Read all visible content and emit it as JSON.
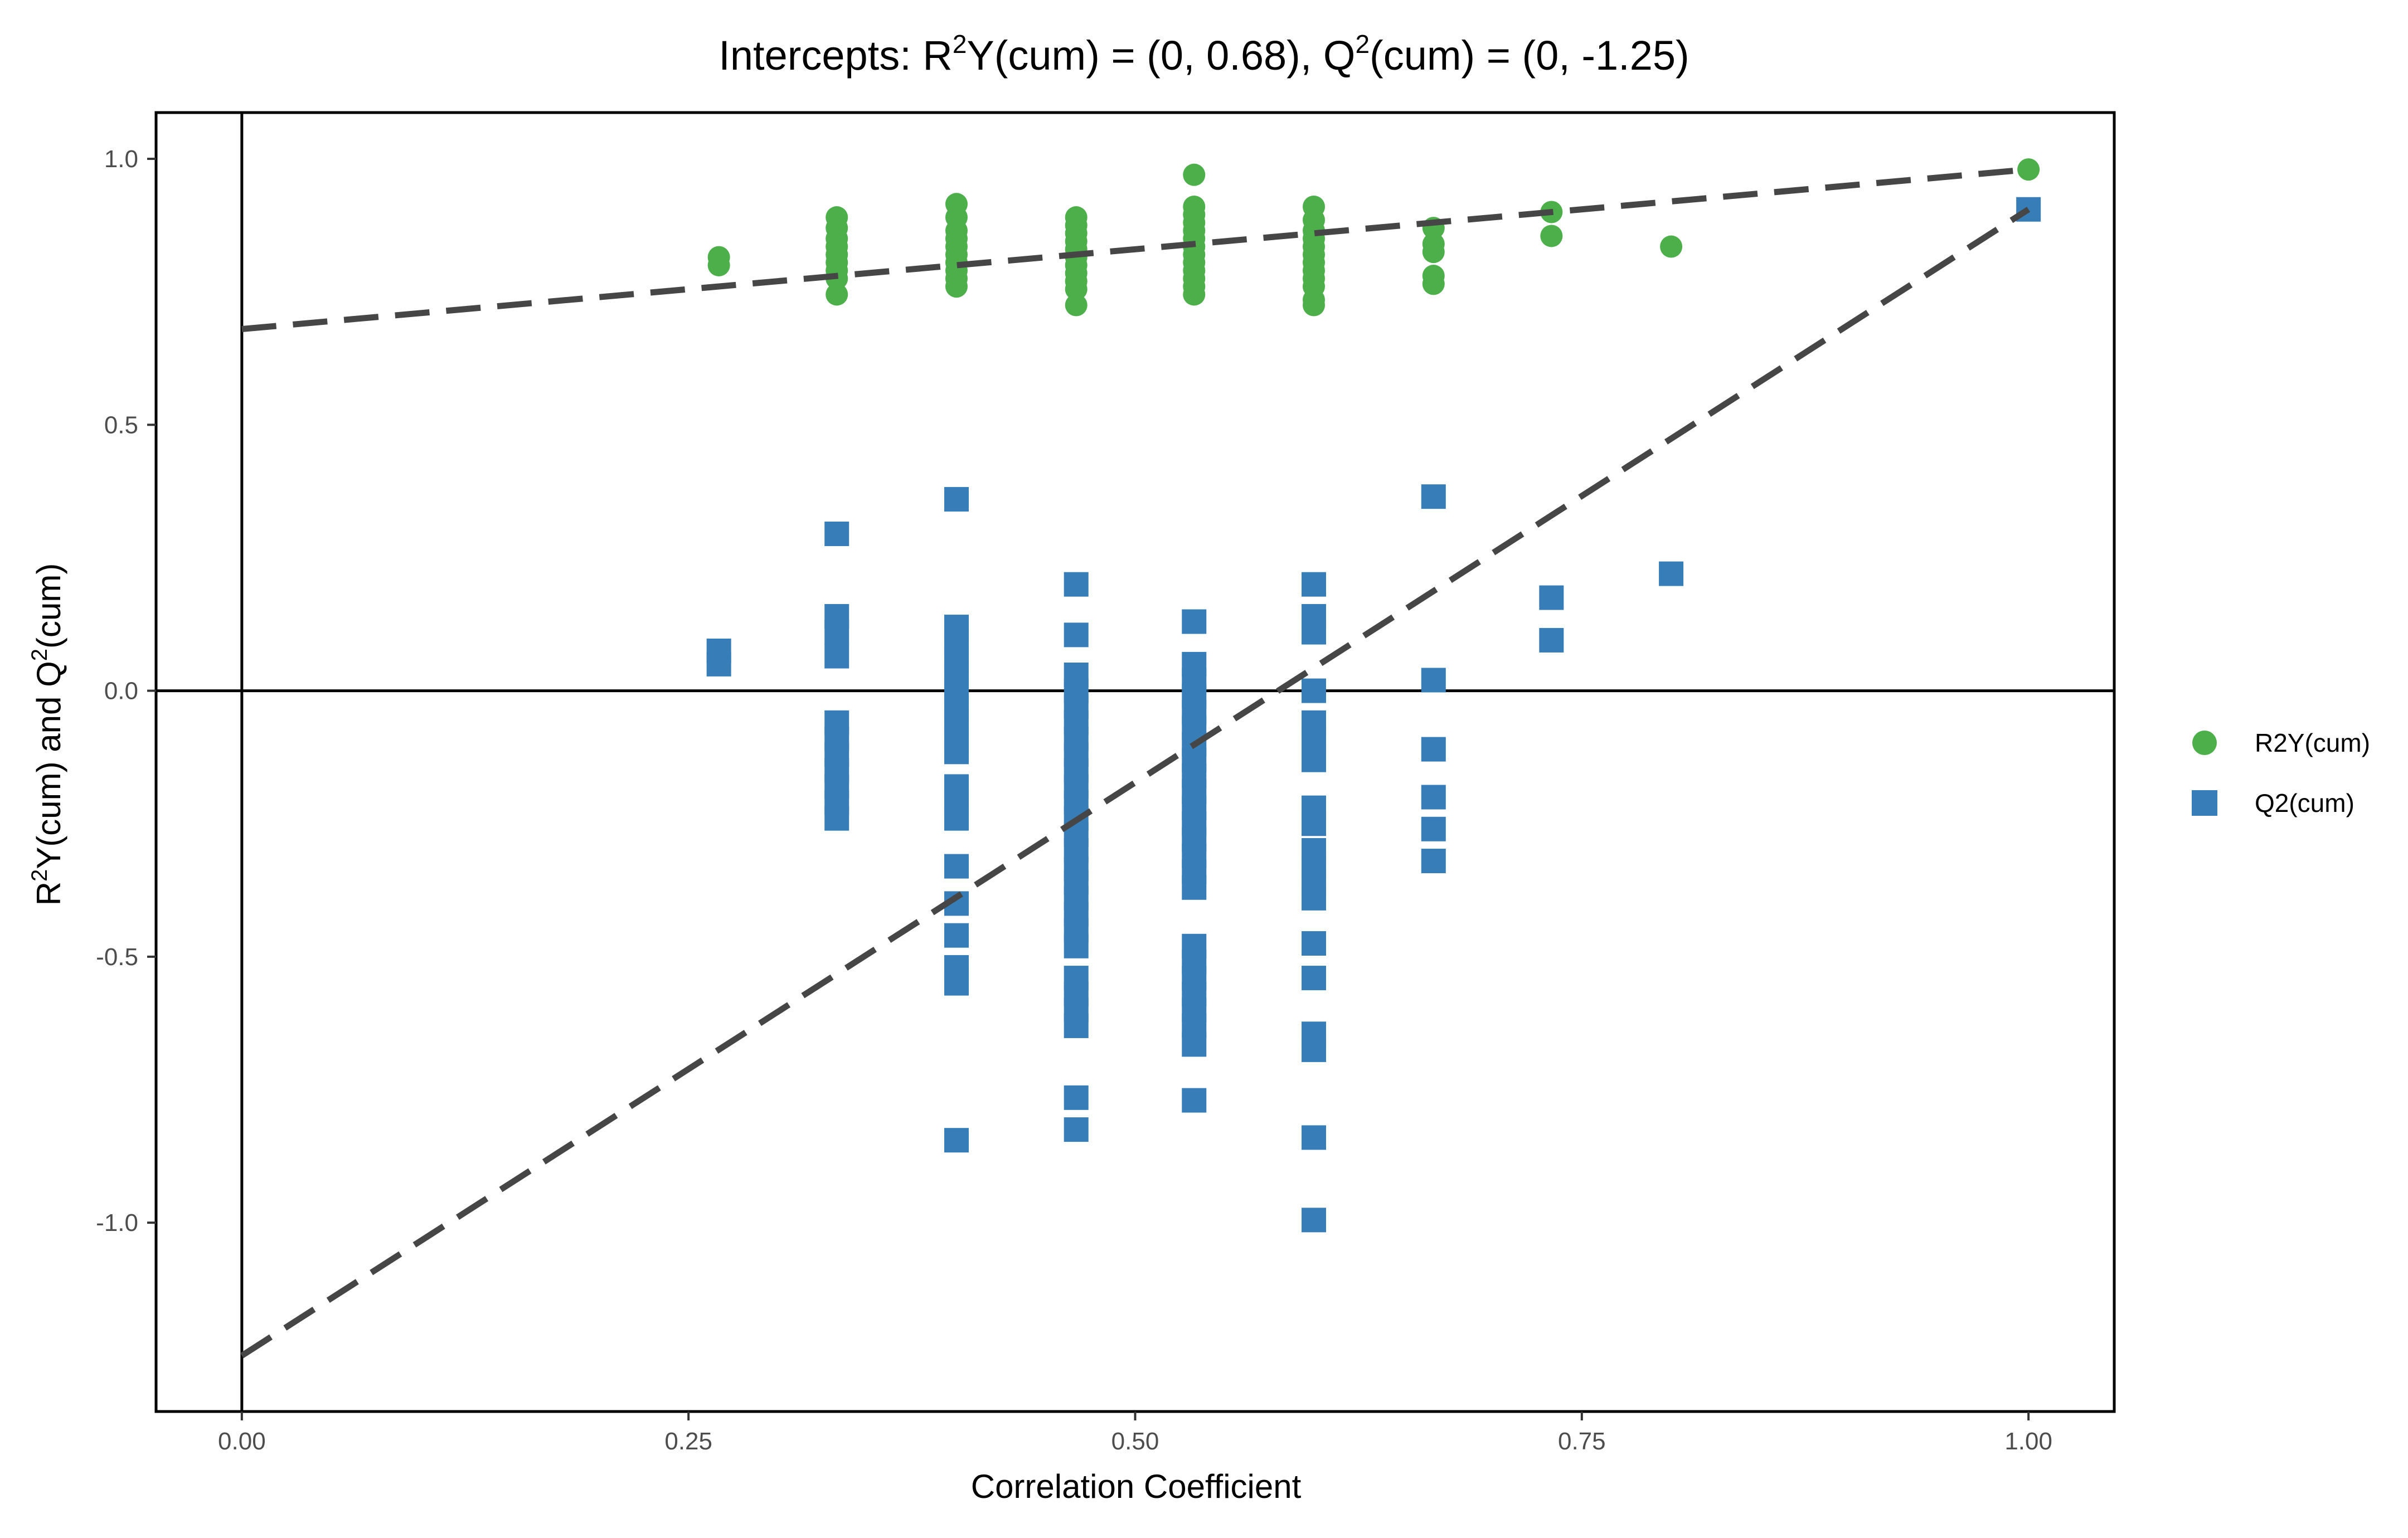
{
  "chart_data": {
    "type": "scatter",
    "title": {
      "prefix": "Intercepts: R",
      "sup1": "2",
      "mid": "Y(cum) = (0, 0.68), Q",
      "sup2": "2",
      "suffix": "(cum) = (0, -1.25)"
    },
    "xlabel": "Correlation Coefficient",
    "ylabel": {
      "a": "R",
      "sup1": "2",
      "b": "Y(cum) and Q",
      "sup2": "2",
      "c": "(cum)"
    },
    "xlim": [
      -0.048,
      1.048
    ],
    "ylim": [
      -1.355,
      1.087
    ],
    "x_ticks": [
      0,
      0.25,
      0.5,
      0.75,
      1
    ],
    "x_tick_labels": [
      "0.00",
      "0.25",
      "0.50",
      "0.75",
      "1.00"
    ],
    "y_ticks": [
      1,
      0.5,
      0,
      -0.5,
      -1
    ],
    "y_tick_labels": [
      "1.0",
      "0.5",
      "0.0",
      "-0.5",
      "-1.0"
    ],
    "reference_lines": [
      {
        "axis": "x",
        "value": 0
      },
      {
        "axis": "y",
        "value": 0
      }
    ],
    "grid": false,
    "legend_position": "right",
    "series": [
      {
        "name": "R2Y(cum)",
        "marker": "circle",
        "color": "#4daf4a",
        "regression": {
          "intercept": 0.68,
          "slope": 0.3
        },
        "points": [
          [
            0.267,
            0.815
          ],
          [
            0.267,
            0.8
          ],
          [
            0.333,
            0.89
          ],
          [
            0.333,
            0.87
          ],
          [
            0.333,
            0.85
          ],
          [
            0.333,
            0.835
          ],
          [
            0.333,
            0.82
          ],
          [
            0.333,
            0.805
          ],
          [
            0.333,
            0.79
          ],
          [
            0.333,
            0.775
          ],
          [
            0.333,
            0.745
          ],
          [
            0.4,
            0.915
          ],
          [
            0.4,
            0.89
          ],
          [
            0.4,
            0.865
          ],
          [
            0.4,
            0.85
          ],
          [
            0.4,
            0.835
          ],
          [
            0.4,
            0.82
          ],
          [
            0.4,
            0.805
          ],
          [
            0.4,
            0.79
          ],
          [
            0.4,
            0.775
          ],
          [
            0.4,
            0.76
          ],
          [
            0.467,
            0.89
          ],
          [
            0.467,
            0.875
          ],
          [
            0.467,
            0.86
          ],
          [
            0.467,
            0.845
          ],
          [
            0.467,
            0.83
          ],
          [
            0.467,
            0.815
          ],
          [
            0.467,
            0.8
          ],
          [
            0.467,
            0.785
          ],
          [
            0.467,
            0.77
          ],
          [
            0.467,
            0.755
          ],
          [
            0.467,
            0.725
          ],
          [
            0.533,
            0.97
          ],
          [
            0.533,
            0.91
          ],
          [
            0.533,
            0.895
          ],
          [
            0.533,
            0.88
          ],
          [
            0.533,
            0.865
          ],
          [
            0.533,
            0.85
          ],
          [
            0.533,
            0.835
          ],
          [
            0.533,
            0.82
          ],
          [
            0.533,
            0.805
          ],
          [
            0.533,
            0.79
          ],
          [
            0.533,
            0.775
          ],
          [
            0.533,
            0.76
          ],
          [
            0.533,
            0.745
          ],
          [
            0.6,
            0.91
          ],
          [
            0.6,
            0.885
          ],
          [
            0.6,
            0.865
          ],
          [
            0.6,
            0.85
          ],
          [
            0.6,
            0.835
          ],
          [
            0.6,
            0.82
          ],
          [
            0.6,
            0.805
          ],
          [
            0.6,
            0.79
          ],
          [
            0.6,
            0.775
          ],
          [
            0.6,
            0.76
          ],
          [
            0.6,
            0.735
          ],
          [
            0.6,
            0.725
          ],
          [
            0.667,
            0.87
          ],
          [
            0.667,
            0.84
          ],
          [
            0.667,
            0.825
          ],
          [
            0.667,
            0.78
          ],
          [
            0.667,
            0.765
          ],
          [
            0.733,
            0.9
          ],
          [
            0.733,
            0.855
          ],
          [
            0.8,
            0.835
          ],
          [
            1.0,
            0.98
          ]
        ]
      },
      {
        "name": "Q2(cum)",
        "marker": "square",
        "color": "#377eb8",
        "regression": {
          "intercept": -1.25,
          "slope": 2.155
        },
        "points": [
          [
            0.267,
            0.075
          ],
          [
            0.267,
            0.05
          ],
          [
            0.333,
            0.295
          ],
          [
            0.333,
            0.14
          ],
          [
            0.333,
            0.11
          ],
          [
            0.333,
            0.065
          ],
          [
            0.333,
            -0.06
          ],
          [
            0.333,
            -0.09
          ],
          [
            0.333,
            -0.12
          ],
          [
            0.333,
            -0.15
          ],
          [
            0.333,
            -0.18
          ],
          [
            0.333,
            -0.21
          ],
          [
            0.333,
            -0.24
          ],
          [
            0.4,
            0.36
          ],
          [
            0.4,
            0.12
          ],
          [
            0.4,
            0.09
          ],
          [
            0.4,
            0.06
          ],
          [
            0.4,
            0.03
          ],
          [
            0.4,
            0.0
          ],
          [
            0.4,
            -0.03
          ],
          [
            0.4,
            -0.06
          ],
          [
            0.4,
            -0.09
          ],
          [
            0.4,
            -0.115
          ],
          [
            0.4,
            -0.18
          ],
          [
            0.4,
            -0.21
          ],
          [
            0.4,
            -0.24
          ],
          [
            0.4,
            -0.33
          ],
          [
            0.4,
            -0.4
          ],
          [
            0.4,
            -0.46
          ],
          [
            0.4,
            -0.52
          ],
          [
            0.4,
            -0.55
          ],
          [
            0.4,
            -0.845
          ],
          [
            0.467,
            0.2
          ],
          [
            0.467,
            0.105
          ],
          [
            0.467,
            0.03
          ],
          [
            0.467,
            0.0
          ],
          [
            0.467,
            -0.03
          ],
          [
            0.467,
            -0.06
          ],
          [
            0.467,
            -0.09
          ],
          [
            0.467,
            -0.12
          ],
          [
            0.467,
            -0.15
          ],
          [
            0.467,
            -0.18
          ],
          [
            0.467,
            -0.21
          ],
          [
            0.467,
            -0.24
          ],
          [
            0.467,
            -0.27
          ],
          [
            0.467,
            -0.3
          ],
          [
            0.467,
            -0.335
          ],
          [
            0.467,
            -0.36
          ],
          [
            0.467,
            -0.39
          ],
          [
            0.467,
            -0.42
          ],
          [
            0.467,
            -0.45
          ],
          [
            0.467,
            -0.48
          ],
          [
            0.467,
            -0.54
          ],
          [
            0.467,
            -0.57
          ],
          [
            0.467,
            -0.6
          ],
          [
            0.467,
            -0.63
          ],
          [
            0.467,
            -0.765
          ],
          [
            0.467,
            -0.825
          ],
          [
            0.533,
            0.13
          ],
          [
            0.533,
            0.05
          ],
          [
            0.533,
            0.02
          ],
          [
            0.533,
            -0.01
          ],
          [
            0.533,
            -0.04
          ],
          [
            0.533,
            -0.07
          ],
          [
            0.533,
            -0.1
          ],
          [
            0.533,
            -0.13
          ],
          [
            0.533,
            -0.16
          ],
          [
            0.533,
            -0.19
          ],
          [
            0.533,
            -0.22
          ],
          [
            0.533,
            -0.25
          ],
          [
            0.533,
            -0.28
          ],
          [
            0.533,
            -0.31
          ],
          [
            0.533,
            -0.34
          ],
          [
            0.533,
            -0.37
          ],
          [
            0.533,
            -0.48
          ],
          [
            0.533,
            -0.51
          ],
          [
            0.533,
            -0.54
          ],
          [
            0.533,
            -0.57
          ],
          [
            0.533,
            -0.6
          ],
          [
            0.533,
            -0.63
          ],
          [
            0.533,
            -0.665
          ],
          [
            0.533,
            -0.77
          ],
          [
            0.6,
            0.2
          ],
          [
            0.6,
            0.14
          ],
          [
            0.6,
            0.11
          ],
          [
            0.6,
            0.0
          ],
          [
            0.6,
            -0.06
          ],
          [
            0.6,
            -0.09
          ],
          [
            0.6,
            -0.13
          ],
          [
            0.6,
            -0.22
          ],
          [
            0.6,
            -0.25
          ],
          [
            0.6,
            -0.3
          ],
          [
            0.6,
            -0.33
          ],
          [
            0.6,
            -0.36
          ],
          [
            0.6,
            -0.39
          ],
          [
            0.6,
            -0.475
          ],
          [
            0.6,
            -0.54
          ],
          [
            0.6,
            -0.645
          ],
          [
            0.6,
            -0.675
          ],
          [
            0.6,
            -0.84
          ],
          [
            0.6,
            -0.995
          ],
          [
            0.667,
            0.365
          ],
          [
            0.667,
            0.02
          ],
          [
            0.667,
            -0.11
          ],
          [
            0.667,
            -0.2
          ],
          [
            0.667,
            -0.26
          ],
          [
            0.667,
            -0.32
          ],
          [
            0.733,
            0.175
          ],
          [
            0.733,
            0.095
          ],
          [
            0.8,
            0.22
          ],
          [
            1.0,
            0.905
          ]
        ]
      }
    ]
  }
}
